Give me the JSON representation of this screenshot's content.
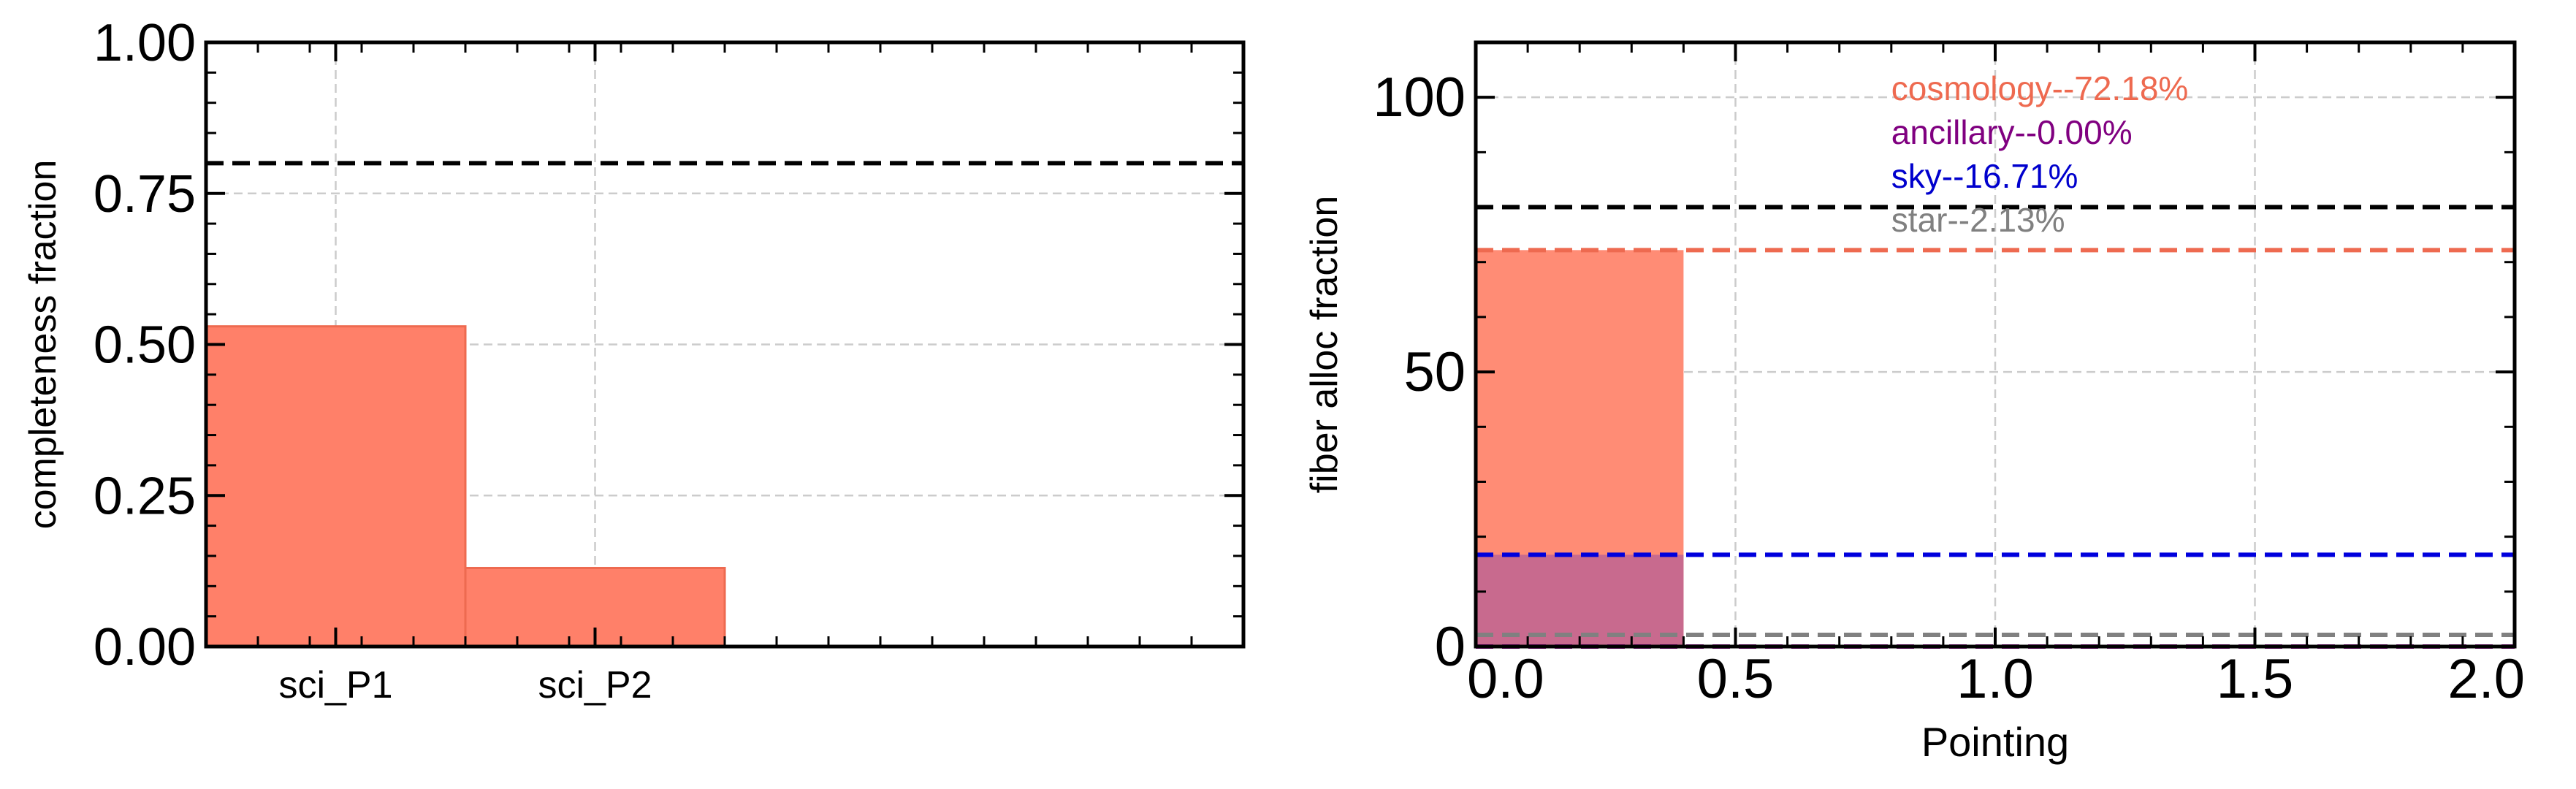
{
  "chart_data": [
    {
      "type": "bar",
      "categories": [
        "sci_P1",
        "sci_P2"
      ],
      "values": [
        0.53,
        0.13
      ],
      "bar_color": "#ff8069",
      "bar_edge_color": "#ee6a50",
      "xlabel": "",
      "ylabel": "completeness fraction",
      "ylim": [
        0,
        1.0
      ],
      "yticks": [
        "0.00",
        "0.25",
        "0.50",
        "0.75",
        "1.00"
      ],
      "reference_line": {
        "y": 0.8,
        "color": "#000000",
        "style": "dashed"
      },
      "grid": true
    },
    {
      "type": "bar",
      "xlabel": "Pointing",
      "ylabel": "fiber alloc fraction",
      "xlim": [
        0,
        2.0
      ],
      "ylim": [
        0,
        110
      ],
      "xticks": [
        "0.0",
        "0.5",
        "1.0",
        "1.5",
        "2.0"
      ],
      "yticks": [
        "0",
        "50",
        "100"
      ],
      "bars": [
        {
          "name": "cosmology",
          "x0": 0.0,
          "x1": 0.4,
          "value": 72.18,
          "color": "#ff8c75"
        },
        {
          "name": "sky",
          "x0": 0.0,
          "x1": 0.4,
          "value": 16.71,
          "color": "#c86a8e"
        }
      ],
      "reference_lines": [
        {
          "y": 80,
          "color": "#000000"
        },
        {
          "y": 72.18,
          "color": "#ee6a50"
        },
        {
          "y": 16.71,
          "color": "#0000dd"
        },
        {
          "y": 2.13,
          "color": "#808080"
        },
        {
          "y": 0.0,
          "color": "#800080"
        }
      ],
      "annotations": [
        {
          "text": "cosmology--72.18%",
          "color": "#ee6a50"
        },
        {
          "text": "ancillary--0.00%",
          "color": "#800080"
        },
        {
          "text": "sky--16.71%",
          "color": "#0000cd"
        },
        {
          "text": "star--2.13%",
          "color": "#808080"
        }
      ],
      "grid": true
    }
  ]
}
